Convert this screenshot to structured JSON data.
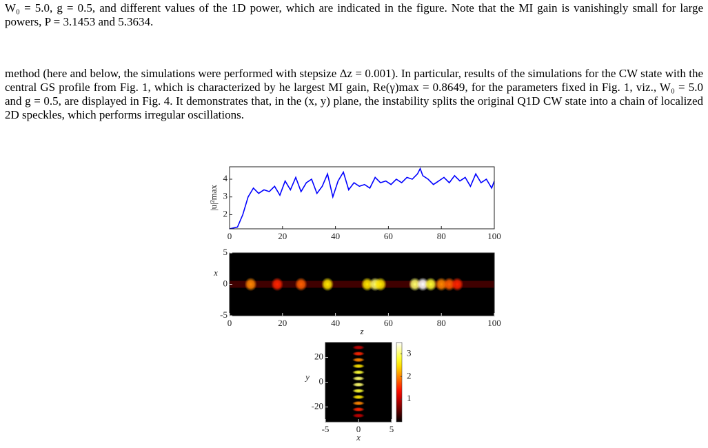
{
  "paragraphs": [
    "W₀ = 5.0, g = 0.5, and different values of the 1D power, which are indicated in the figure. Note that the MI gain is vanishingly small for large powers, P = 3.1453 and 5.3634.",
    "method (here and below, the simulations were performed with stepsize Δz = 0.001). In particular, results of the simulations for the CW state with the central GS profile from Fig. 1, which is characterized by he largest MI gain, Re(γ)max = 0.8649, for the parameters fixed in Fig. 1, viz., W₀ = 5.0 and g = 0.5, are displayed in Fig. 4. It demonstrates that, in the (x, y) plane, the instability splits the original Q1D CW state into a chain of localized 2D speckles, which performs irregular oscillations."
  ],
  "figure": {
    "panels": [
      {
        "type": "line",
        "color": "#0000ff",
        "ylabel": "|u|²max",
        "x": [
          0,
          3,
          5,
          7,
          9,
          11,
          13,
          15,
          17,
          19,
          21,
          23,
          25,
          27,
          29,
          31,
          33,
          35,
          37,
          39,
          41,
          43,
          45,
          47,
          49,
          51,
          53,
          55,
          57,
          59,
          61,
          63,
          65,
          67,
          69,
          71,
          72,
          73,
          75,
          77,
          79,
          81,
          83,
          85,
          87,
          89,
          91,
          93,
          95,
          97,
          99,
          100
        ],
        "values": [
          1.2,
          1.3,
          2.0,
          3.0,
          3.5,
          3.2,
          3.4,
          3.3,
          3.6,
          3.1,
          3.9,
          3.4,
          4.1,
          3.3,
          3.8,
          4.0,
          3.2,
          3.6,
          4.3,
          3.0,
          3.9,
          4.4,
          3.4,
          3.8,
          3.6,
          3.7,
          3.5,
          4.1,
          3.8,
          3.9,
          3.7,
          4.0,
          3.8,
          4.1,
          4.0,
          4.3,
          4.6,
          4.2,
          4.0,
          3.7,
          3.9,
          4.1,
          3.8,
          4.2,
          3.9,
          4.1,
          3.6,
          4.3,
          3.8,
          4.0,
          3.5,
          3.9
        ],
        "xlim": [
          0,
          100
        ],
        "ylim": [
          1.2,
          4.7
        ],
        "xticks": [
          0,
          20,
          40,
          60,
          80,
          100
        ],
        "yticks": [
          2,
          3,
          4
        ]
      },
      {
        "type": "heatmap",
        "xlabel": "z",
        "ylabel": "x",
        "z": [
          8,
          18,
          27,
          37,
          52,
          55,
          57,
          70,
          73,
          76,
          80,
          83,
          86
        ],
        "values": [
          2.0,
          1.5,
          1.8,
          2.5,
          2.5,
          3.0,
          2.5,
          3.0,
          3.5,
          2.8,
          2.0,
          1.8,
          1.5
        ],
        "xlim": [
          0,
          100
        ],
        "ylim": [
          -5,
          5
        ],
        "xticks": [
          0,
          20,
          40,
          60,
          80,
          100
        ],
        "yticks": [
          5,
          0,
          -5
        ],
        "clim": [
          0,
          3.5
        ]
      },
      {
        "type": "heatmap",
        "xlabel": "x",
        "ylabel": "y",
        "y": [
          28,
          23,
          18,
          13,
          8,
          3,
          -2,
          -7,
          -12,
          -17,
          -22,
          -27
        ],
        "values": [
          1,
          1.5,
          2,
          2.5,
          2.8,
          3,
          3,
          2.8,
          2.5,
          2,
          1.5,
          1
        ],
        "xlim": [
          -5,
          5
        ],
        "ylim": [
          -32,
          32
        ],
        "xticks": [
          -5,
          0,
          5
        ],
        "yticks": [
          20,
          0,
          -20
        ],
        "clim": [
          0,
          3.5
        ],
        "cticks": [
          1,
          2,
          3
        ]
      }
    ]
  }
}
